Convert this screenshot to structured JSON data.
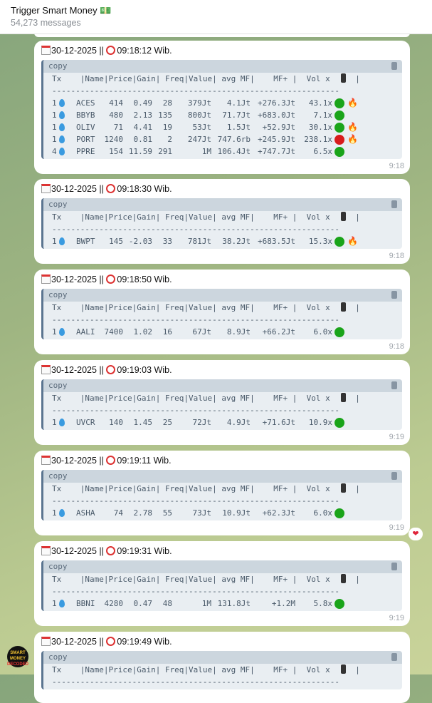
{
  "header": {
    "title": "Trigger Smart Money 💵",
    "subtitle": "54,273 messages"
  },
  "table_header": "Tx    |Name|Price|Gain| Freq|Value| avg MF|    MF+ |  Vol x",
  "table_header_end": "  |",
  "dash_line": "-------------------------------------------------------------",
  "copy_label": "copy",
  "colors": {
    "green": "#1aa41a",
    "red": "#d81c1c",
    "bubble": "#ffffff",
    "code_bg": "#e9eef2"
  },
  "messages": [
    {
      "date": "30-12-2025",
      "time_text": "09:18:12 Wib.",
      "sent": "9:18",
      "rows": [
        {
          "tx": "1",
          "icon": "droplet",
          "name": "ACES",
          "price": "414",
          "gain": "0.49",
          "freq": "28",
          "value": "379Jt",
          "avg_mf": "4.1Jt",
          "mf_plus": "+276.3Jt",
          "vol": "43.1x",
          "status": "green",
          "fire": true
        },
        {
          "tx": "1",
          "icon": "droplet",
          "name": "BBYB",
          "price": "480",
          "gain": "2.13",
          "freq": "135",
          "value": "800Jt",
          "avg_mf": "71.7Jt",
          "mf_plus": "+683.0Jt",
          "vol": "7.1x",
          "status": "green",
          "fire": false
        },
        {
          "tx": "1",
          "icon": "droplet",
          "name": "OLIV",
          "price": "71",
          "gain": "4.41",
          "freq": "19",
          "value": "53Jt",
          "avg_mf": "1.5Jt",
          "mf_plus": "+52.9Jt",
          "vol": "30.1x",
          "status": "green",
          "fire": true
        },
        {
          "tx": "1",
          "icon": "droplet",
          "name": "PORT",
          "price": "1240",
          "gain": "0.81",
          "freq": "2",
          "value": "247Jt",
          "avg_mf": "747.6rb",
          "mf_plus": "+245.9Jt",
          "vol": "238.1x",
          "status": "red",
          "fire": true
        },
        {
          "tx": "4",
          "icon": "droplets",
          "name": "PPRE",
          "price": "154",
          "gain": "11.59",
          "freq": "291",
          "value": "1M",
          "avg_mf": "106.4Jt",
          "mf_plus": "+747.7Jt",
          "vol": "6.5x",
          "status": "green",
          "fire": false
        }
      ]
    },
    {
      "date": "30-12-2025",
      "time_text": "09:18:30 Wib.",
      "sent": "9:18",
      "rows": [
        {
          "tx": "1",
          "icon": "droplet",
          "name": "BWPT",
          "price": "145",
          "gain": "-2.03",
          "freq": "33",
          "value": "781Jt",
          "avg_mf": "38.2Jt",
          "mf_plus": "+683.5Jt",
          "vol": "15.3x",
          "status": "green",
          "fire": true
        }
      ]
    },
    {
      "date": "30-12-2025",
      "time_text": "09:18:50 Wib.",
      "sent": "9:18",
      "rows": [
        {
          "tx": "1",
          "icon": "droplet",
          "name": "AALI",
          "price": "7400",
          "gain": "1.02",
          "freq": "16",
          "value": "67Jt",
          "avg_mf": "8.9Jt",
          "mf_plus": "+66.2Jt",
          "vol": "6.0x",
          "status": "green",
          "fire": false
        }
      ]
    },
    {
      "date": "30-12-2025",
      "time_text": "09:19:03 Wib.",
      "sent": "9:19",
      "rows": [
        {
          "tx": "1",
          "icon": "droplet",
          "name": "UVCR",
          "price": "140",
          "gain": "1.45",
          "freq": "25",
          "value": "72Jt",
          "avg_mf": "4.9Jt",
          "mf_plus": "+71.6Jt",
          "vol": "10.9x",
          "status": "green",
          "fire": false
        }
      ]
    },
    {
      "date": "30-12-2025",
      "time_text": "09:19:11 Wib.",
      "sent": "9:19",
      "reaction": "❤",
      "rows": [
        {
          "tx": "1",
          "icon": "droplet",
          "name": "ASHA",
          "price": "74",
          "gain": "2.78",
          "freq": "55",
          "value": "73Jt",
          "avg_mf": "10.9Jt",
          "mf_plus": "+62.3Jt",
          "vol": "6.0x",
          "status": "green",
          "fire": false
        }
      ]
    },
    {
      "date": "30-12-2025",
      "time_text": "09:19:31 Wib.",
      "sent": "9:19",
      "rows": [
        {
          "tx": "1",
          "icon": "droplet",
          "name": "BBNI",
          "price": "4280",
          "gain": "0.47",
          "freq": "48",
          "value": "1M",
          "avg_mf": "131.8Jt",
          "mf_plus": "+1.2M",
          "vol": "5.8x",
          "status": "green",
          "fire": false
        }
      ]
    },
    {
      "date": "30-12-2025",
      "time_text": "09:19:49 Wib.",
      "sent": "",
      "rows": []
    }
  ],
  "avatar_text": "SMART MONEY DECODED"
}
